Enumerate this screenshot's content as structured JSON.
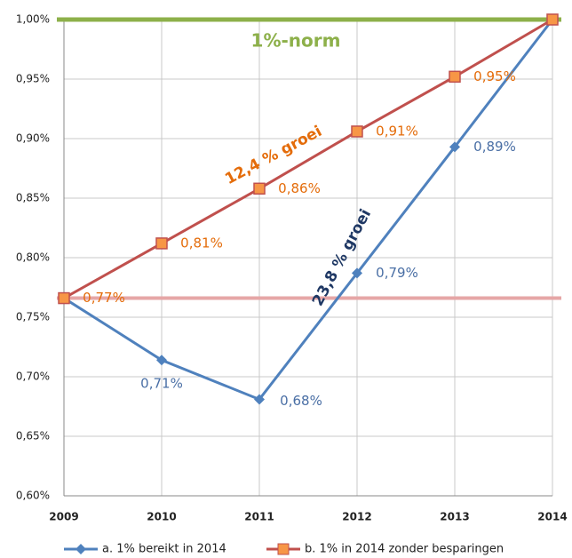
{
  "chart_data": {
    "type": "line",
    "categories": [
      "2009",
      "2010",
      "2011",
      "2012",
      "2013",
      "2014"
    ],
    "series": [
      {
        "name": "a. 1% bereikt in 2014",
        "color": "#4f81bd",
        "marker": "diamond",
        "label_color": "#4a6fa5",
        "values": [
          0.766,
          0.714,
          0.681,
          0.787,
          0.893,
          1.0
        ],
        "value_labels": [
          null,
          "0,71%",
          "0,68%",
          "0,79%",
          "0,89%",
          null
        ]
      },
      {
        "name": "b. 1% in 2014 zonder besparingen",
        "color": "#c0504d",
        "marker": "square",
        "marker_color": "#f79646",
        "label_color": "#e46c0a",
        "values": [
          0.766,
          0.812,
          0.858,
          0.906,
          0.952,
          1.0
        ],
        "value_labels": [
          "0,77%",
          "0,81%",
          "0,86%",
          "0,91%",
          "0,95%",
          null
        ]
      }
    ],
    "reference_lines": [
      {
        "value": 1.0,
        "color": "#8db04a",
        "label": "1%-norm"
      },
      {
        "value": 0.766,
        "color": "#e6a6a6"
      }
    ],
    "annotations": [
      {
        "text": "12,4 % groei",
        "color": "#e46c0a"
      },
      {
        "text": "23,8 % groei",
        "color": "#1f3864"
      }
    ],
    "ylim": [
      0.6,
      1.0
    ],
    "yticks": [
      {
        "value": 0.6,
        "label": "0,60%"
      },
      {
        "value": 0.65,
        "label": "0,65%"
      },
      {
        "value": 0.7,
        "label": "0,70%"
      },
      {
        "value": 0.75,
        "label": "0,75%"
      },
      {
        "value": 0.8,
        "label": "0,80%"
      },
      {
        "value": 0.85,
        "label": "0,85%"
      },
      {
        "value": 0.9,
        "label": "0,90%"
      },
      {
        "value": 0.95,
        "label": "0,95%"
      },
      {
        "value": 1.0,
        "label": "1,00%"
      }
    ],
    "grid": true,
    "legend": "bottom"
  }
}
